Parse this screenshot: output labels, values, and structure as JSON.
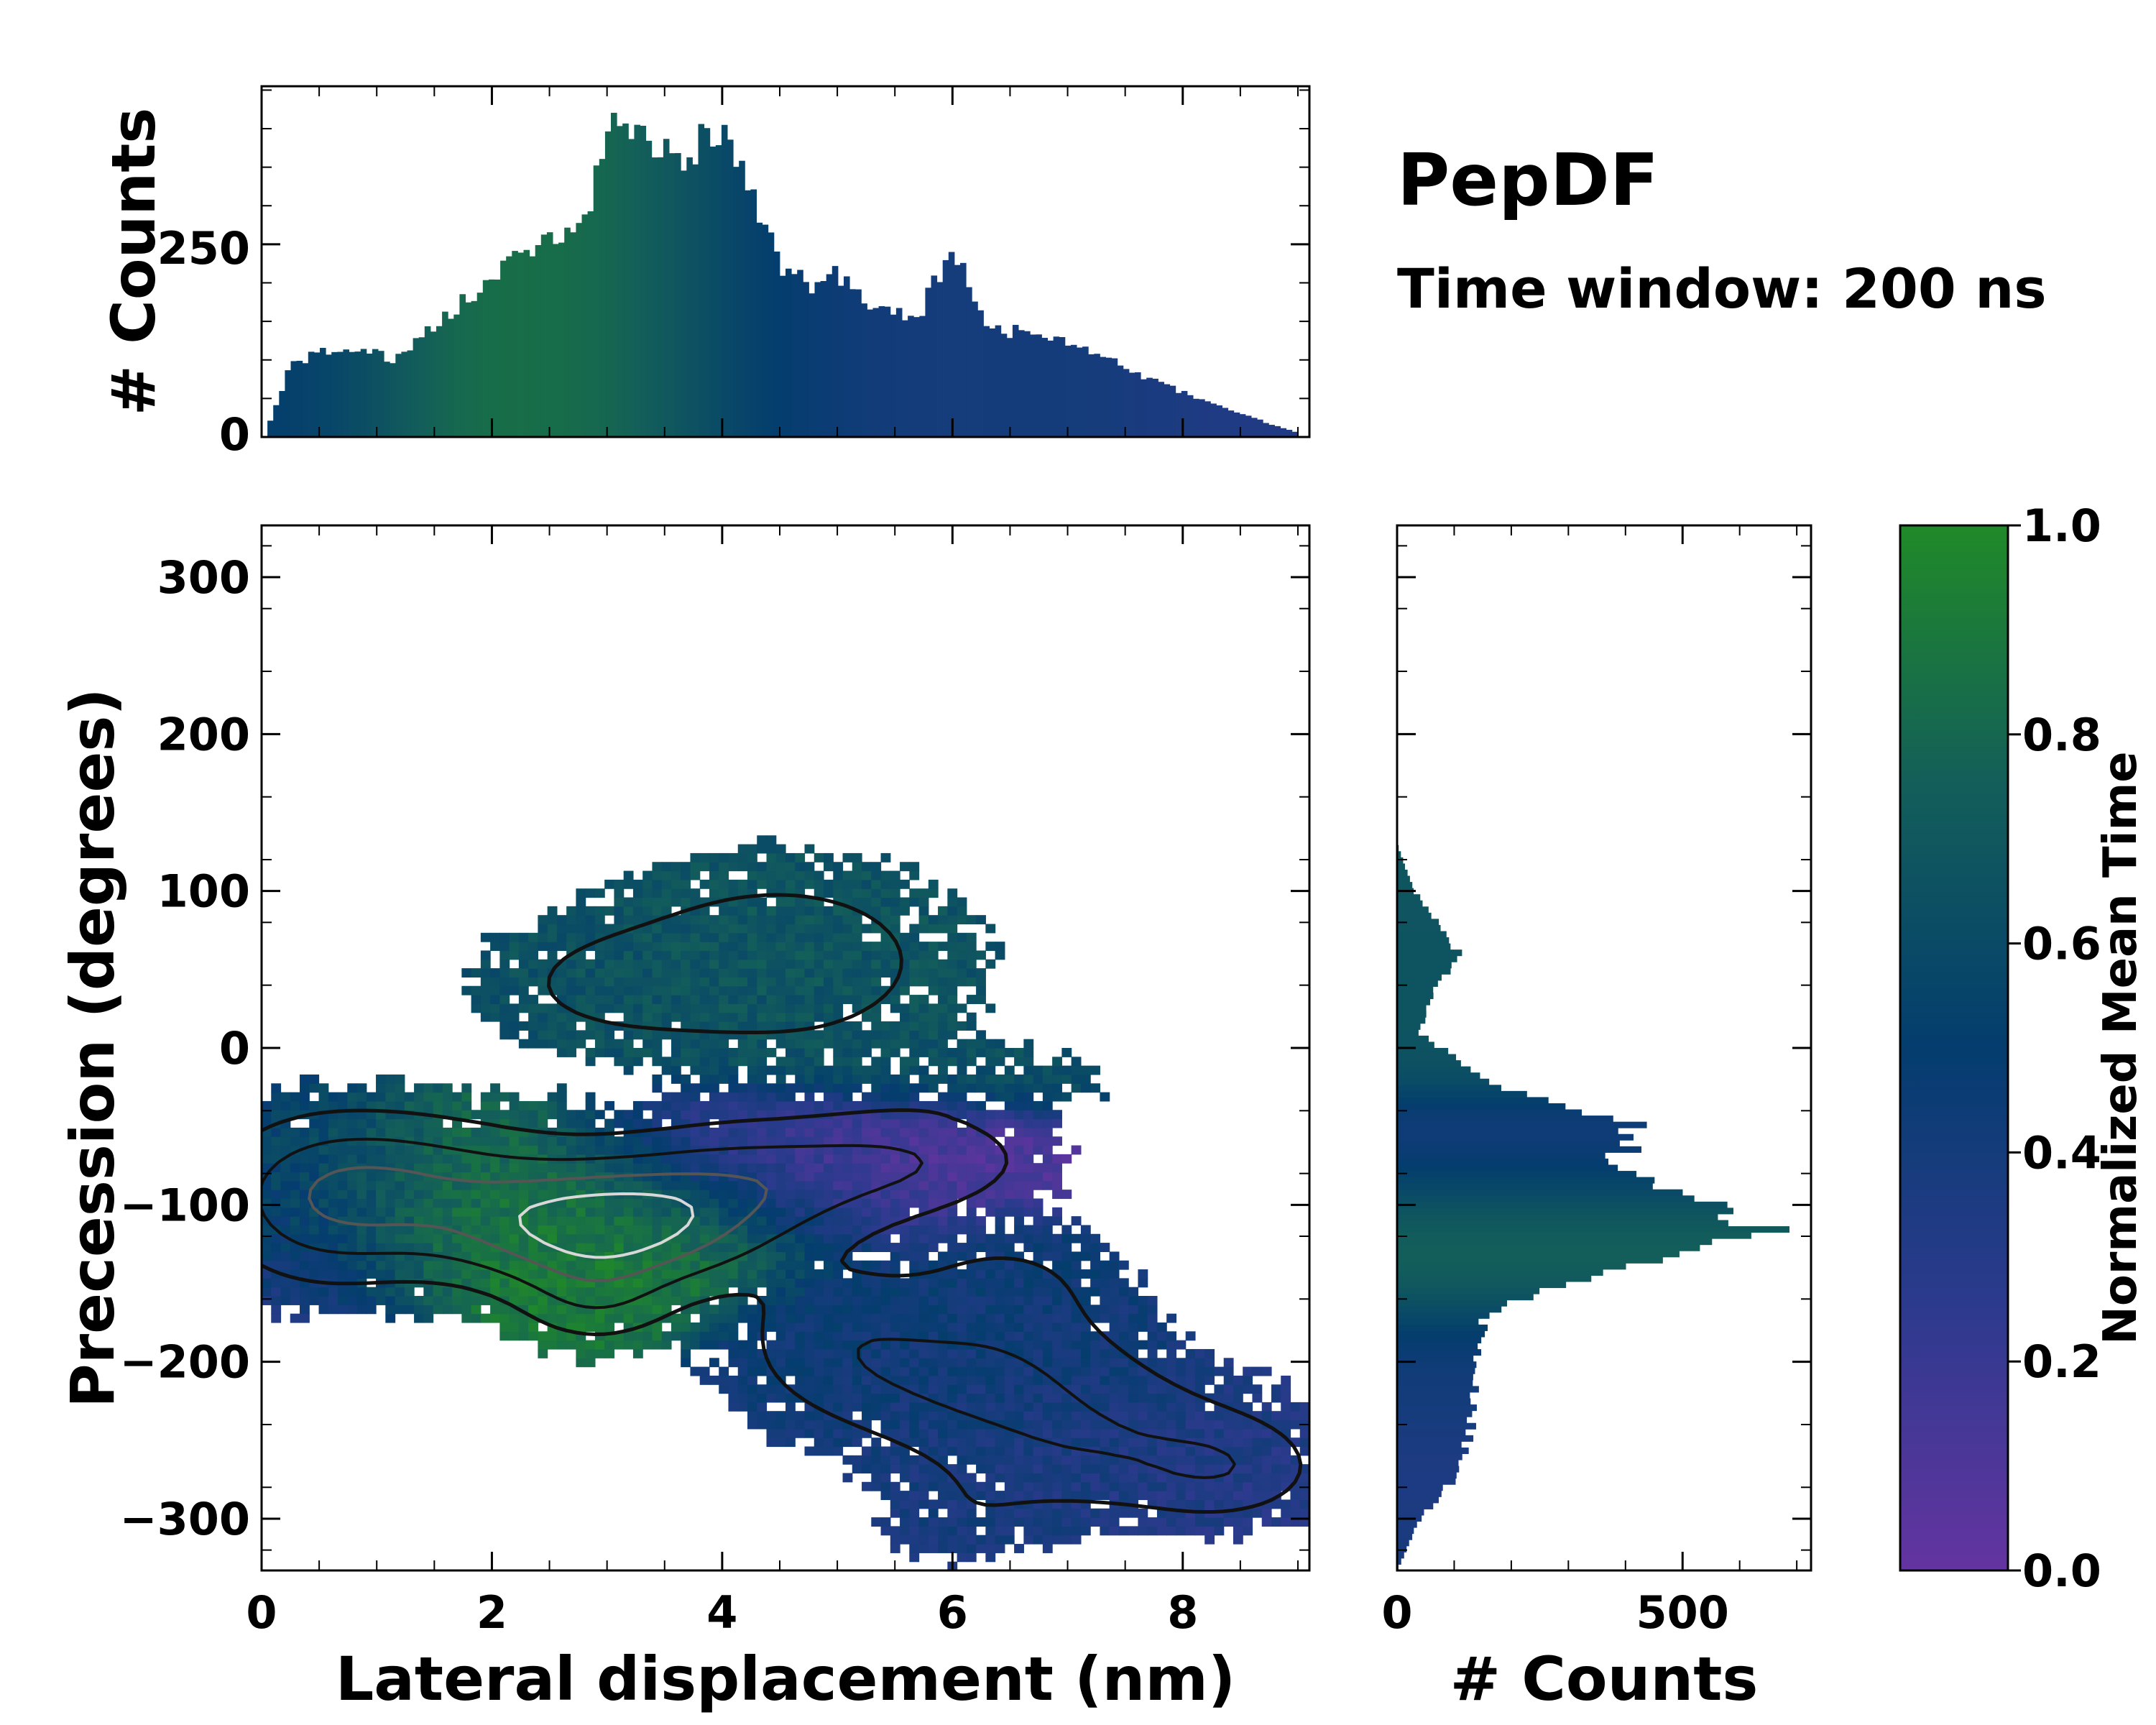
{
  "chart_data": {
    "type": "histogram2d",
    "title": "PepDF",
    "subtitle": "Time window: 200 ns",
    "colors": {
      "low": "#6434a0",
      "mid_low": "#2d3a8e",
      "mid": "#043d6e",
      "mid_high": "#135e5a",
      "high": "#208a28",
      "contour_dark": "#111111",
      "contour_mid": "#555555",
      "contour_light": "#d8d8d8"
    },
    "main": {
      "xlabel": "Lateral displacement (nm)",
      "ylabel": "Precession (degrees)",
      "xlim": [
        0,
        9.1
      ],
      "ylim": [
        -333,
        333
      ],
      "xticks": [
        0,
        2,
        4,
        6,
        8
      ],
      "xtick_labels": [
        "0",
        "2",
        "4",
        "6",
        "8"
      ],
      "yticks": [
        300,
        200,
        100,
        0,
        -100,
        -200,
        -300
      ],
      "ytick_labels": [
        "300",
        "200",
        "100",
        "0",
        "−100",
        "−200",
        "−300"
      ],
      "blobs": [
        {
          "x": 3.0,
          "y": -115,
          "sx": 0.85,
          "sy": 25,
          "w": 1.0,
          "t": 0.92
        },
        {
          "x": 1.3,
          "y": -90,
          "sx": 0.9,
          "sy": 30,
          "w": 0.55,
          "t": 0.82
        },
        {
          "x": 0.5,
          "y": -100,
          "sx": 0.6,
          "sy": 35,
          "w": 0.35,
          "t": 0.3
        },
        {
          "x": 2.9,
          "y": -160,
          "sx": 0.45,
          "sy": 20,
          "w": 0.3,
          "t": 0.9
        },
        {
          "x": 4.3,
          "y": -85,
          "sx": 0.9,
          "sy": 25,
          "w": 0.5,
          "t": 0.2
        },
        {
          "x": 5.7,
          "y": -70,
          "sx": 0.7,
          "sy": 20,
          "w": 0.3,
          "t": 0.1
        },
        {
          "x": 4.5,
          "y": 55,
          "sx": 0.95,
          "sy": 38,
          "w": 0.35,
          "t": 0.68
        },
        {
          "x": 3.0,
          "y": 40,
          "sx": 0.7,
          "sy": 25,
          "w": 0.2,
          "t": 0.65
        },
        {
          "x": 6.1,
          "y": -20,
          "sx": 0.8,
          "sy": 15,
          "w": 0.15,
          "t": 0.65
        },
        {
          "x": 6.2,
          "y": -210,
          "sx": 0.95,
          "sy": 30,
          "w": 0.42,
          "t": 0.42
        },
        {
          "x": 7.4,
          "y": -255,
          "sx": 0.95,
          "sy": 28,
          "w": 0.35,
          "t": 0.35
        },
        {
          "x": 8.4,
          "y": -270,
          "sx": 0.5,
          "sy": 20,
          "w": 0.25,
          "t": 0.3
        },
        {
          "x": 6.1,
          "y": -300,
          "sx": 0.5,
          "sy": 20,
          "w": 0.12,
          "t": 0.4
        },
        {
          "x": 5.0,
          "y": -180,
          "sx": 0.6,
          "sy": 30,
          "w": 0.25,
          "t": 0.45
        },
        {
          "x": 6.5,
          "y": -150,
          "sx": 0.6,
          "sy": 25,
          "w": 0.2,
          "t": 0.45
        }
      ],
      "contour_levels": [
        {
          "level": 0.16,
          "color": "contour_dark"
        },
        {
          "level": 0.36,
          "color": "contour_dark"
        },
        {
          "level": 0.58,
          "color": "contour_mid"
        },
        {
          "level": 0.8,
          "color": "contour_light"
        }
      ]
    },
    "top_hist": {
      "ylabel": "# Counts",
      "xlim": [
        0,
        9.1
      ],
      "ylim": [
        0,
        455
      ],
      "yticks": [
        0,
        250
      ],
      "ytick_labels": [
        "0",
        "250"
      ],
      "peaks": [
        {
          "x": 0.05,
          "y": 10
        },
        {
          "x": 0.25,
          "y": 90
        },
        {
          "x": 0.5,
          "y": 110
        },
        {
          "x": 0.8,
          "y": 115
        },
        {
          "x": 1.0,
          "y": 110
        },
        {
          "x": 1.15,
          "y": 95
        },
        {
          "x": 1.4,
          "y": 135
        },
        {
          "x": 1.8,
          "y": 180
        },
        {
          "x": 2.2,
          "y": 230
        },
        {
          "x": 2.5,
          "y": 260
        },
        {
          "x": 2.8,
          "y": 270
        },
        {
          "x": 3.0,
          "y": 405
        },
        {
          "x": 3.4,
          "y": 380
        },
        {
          "x": 3.7,
          "y": 370
        },
        {
          "x": 4.0,
          "y": 395
        },
        {
          "x": 4.2,
          "y": 350
        },
        {
          "x": 4.5,
          "y": 215
        },
        {
          "x": 4.8,
          "y": 195
        },
        {
          "x": 5.0,
          "y": 210
        },
        {
          "x": 5.3,
          "y": 170
        },
        {
          "x": 5.7,
          "y": 155
        },
        {
          "x": 6.0,
          "y": 245
        },
        {
          "x": 6.3,
          "y": 140
        },
        {
          "x": 6.8,
          "y": 135
        },
        {
          "x": 7.2,
          "y": 110
        },
        {
          "x": 7.8,
          "y": 70
        },
        {
          "x": 8.4,
          "y": 35
        },
        {
          "x": 9.0,
          "y": 5
        }
      ]
    },
    "right_hist": {
      "xlabel": "# Counts",
      "xlim": [
        0,
        725
      ],
      "ylim": [
        -333,
        333
      ],
      "xticks": [
        0,
        500
      ],
      "xtick_labels": [
        "0",
        "500"
      ],
      "peaks": [
        {
          "y": 130,
          "x": 0
        },
        {
          "y": 100,
          "x": 30
        },
        {
          "y": 60,
          "x": 110
        },
        {
          "y": 40,
          "x": 70
        },
        {
          "y": 10,
          "x": 40
        },
        {
          "y": -25,
          "x": 170
        },
        {
          "y": -50,
          "x": 420
        },
        {
          "y": -75,
          "x": 380
        },
        {
          "y": -95,
          "x": 510
        },
        {
          "y": -115,
          "x": 650
        },
        {
          "y": -140,
          "x": 380
        },
        {
          "y": -170,
          "x": 150
        },
        {
          "y": -200,
          "x": 140
        },
        {
          "y": -240,
          "x": 130
        },
        {
          "y": -270,
          "x": 110
        },
        {
          "y": -300,
          "x": 40
        },
        {
          "y": -333,
          "x": 0
        }
      ]
    },
    "colorbar": {
      "label": "Normalized Mean Time",
      "range": [
        0.0,
        1.0
      ],
      "ticks": [
        0.0,
        0.2,
        0.4,
        0.6,
        0.8,
        1.0
      ],
      "tick_labels": [
        "0.0",
        "0.2",
        "0.4",
        "0.6",
        "0.8",
        "1.0"
      ]
    }
  }
}
